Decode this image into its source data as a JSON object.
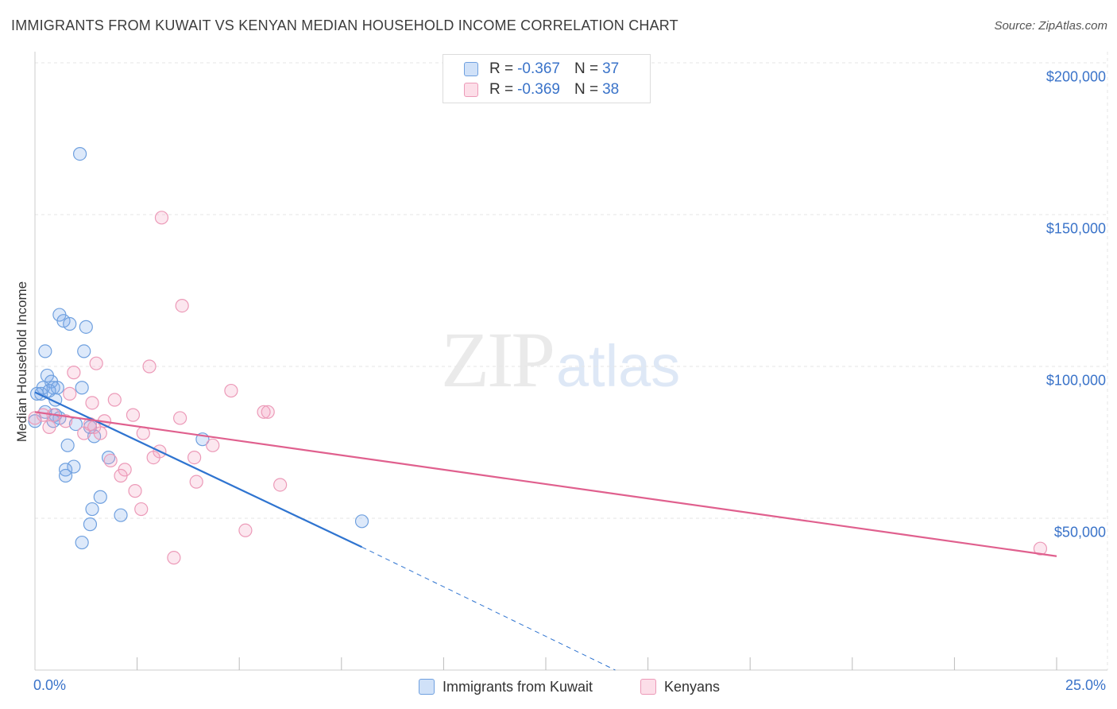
{
  "header": {
    "title": "IMMIGRANTS FROM KUWAIT VS KENYAN MEDIAN HOUSEHOLD INCOME CORRELATION CHART",
    "source": "Source: ZipAtlas.com"
  },
  "watermark": {
    "zip": "ZIP",
    "atlas": "atlas"
  },
  "colors": {
    "blue_fill": "rgba(120,168,235,0.25)",
    "blue_stroke": "#6fa0df",
    "blue_line": "#2f74d0",
    "pink_fill": "rgba(245,160,190,0.25)",
    "pink_stroke": "#ec9ab8",
    "pink_line": "#e0608e",
    "grid": "#e6e6e6",
    "tick_text": "#3a73c9"
  },
  "legend": {
    "rows": [
      {
        "r_label": "R =",
        "r_value": "-0.367",
        "n_label": "N =",
        "n_value": "37",
        "series": "blue"
      },
      {
        "r_label": "R =",
        "r_value": "-0.369",
        "n_label": "N =",
        "n_value": "38",
        "series": "pink"
      }
    ]
  },
  "chart_data": {
    "type": "scatter",
    "title": "IMMIGRANTS FROM KUWAIT VS KENYAN MEDIAN HOUSEHOLD INCOME CORRELATION CHART",
    "xlabel": "",
    "ylabel": "Median Household Income",
    "xlim": [
      0,
      25
    ],
    "ylim": [
      0,
      205000
    ],
    "x_tick_labels": [
      {
        "value": 0,
        "label": "0.0%"
      },
      {
        "value": 25,
        "label": "25.0%"
      }
    ],
    "x_minor_ticks": [
      2.5,
      5,
      7.5,
      10,
      12.5,
      15,
      17.5,
      20,
      22.5,
      25
    ],
    "y_ticks": [
      {
        "value": 50000,
        "label": "$50,000"
      },
      {
        "value": 100000,
        "label": "$100,000"
      },
      {
        "value": 150000,
        "label": "$150,000"
      },
      {
        "value": 200000,
        "label": "$200,000"
      }
    ],
    "grid": true,
    "legend_position": "top-center",
    "series": [
      {
        "name": "Immigrants from Kuwait",
        "color": "blue",
        "points": [
          [
            1.1,
            170000
          ],
          [
            0.6,
            117000
          ],
          [
            0.7,
            115000
          ],
          [
            1.25,
            113000
          ],
          [
            0.85,
            114000
          ],
          [
            0.25,
            105000
          ],
          [
            1.2,
            105000
          ],
          [
            0.3,
            97000
          ],
          [
            0.4,
            95000
          ],
          [
            0.5,
            89000
          ],
          [
            0.2,
            93000
          ],
          [
            0.45,
            93000
          ],
          [
            0.55,
            93000
          ],
          [
            1.15,
            93000
          ],
          [
            0.15,
            91000
          ],
          [
            0.35,
            92000
          ],
          [
            0.05,
            91000
          ],
          [
            0.5,
            84000
          ],
          [
            0.6,
            83000
          ],
          [
            1.0,
            81000
          ],
          [
            1.35,
            80000
          ],
          [
            1.45,
            77000
          ],
          [
            4.1,
            76000
          ],
          [
            0.8,
            74000
          ],
          [
            1.8,
            70000
          ],
          [
            0.95,
            67000
          ],
          [
            0.75,
            66000
          ],
          [
            0.75,
            64000
          ],
          [
            1.6,
            57000
          ],
          [
            1.4,
            53000
          ],
          [
            2.1,
            51000
          ],
          [
            1.35,
            48000
          ],
          [
            8.0,
            49000
          ],
          [
            1.15,
            42000
          ],
          [
            0.45,
            82000
          ],
          [
            0.25,
            85000
          ],
          [
            0.0,
            82000
          ]
        ]
      },
      {
        "name": "Kenyans",
        "color": "pink",
        "points": [
          [
            3.1,
            149000
          ],
          [
            3.6,
            120000
          ],
          [
            1.5,
            101000
          ],
          [
            2.8,
            100000
          ],
          [
            0.95,
            98000
          ],
          [
            4.8,
            92000
          ],
          [
            0.85,
            91000
          ],
          [
            1.95,
            89000
          ],
          [
            1.4,
            88000
          ],
          [
            5.6,
            85000
          ],
          [
            5.7,
            85000
          ],
          [
            2.4,
            84000
          ],
          [
            0.45,
            84000
          ],
          [
            0.2,
            84000
          ],
          [
            0.0,
            83000
          ],
          [
            3.55,
            83000
          ],
          [
            1.7,
            82000
          ],
          [
            0.75,
            82000
          ],
          [
            1.45,
            80000
          ],
          [
            1.6,
            78000
          ],
          [
            1.2,
            78000
          ],
          [
            2.65,
            78000
          ],
          [
            4.35,
            74000
          ],
          [
            3.05,
            72000
          ],
          [
            3.9,
            70000
          ],
          [
            2.9,
            70000
          ],
          [
            1.85,
            69000
          ],
          [
            2.2,
            66000
          ],
          [
            2.1,
            64000
          ],
          [
            3.95,
            62000
          ],
          [
            6.0,
            61000
          ],
          [
            2.45,
            59000
          ],
          [
            2.6,
            53000
          ],
          [
            5.15,
            46000
          ],
          [
            3.4,
            37000
          ],
          [
            24.6,
            40000
          ],
          [
            0.35,
            80000
          ],
          [
            1.35,
            81000
          ]
        ]
      }
    ],
    "trend_lines": [
      {
        "series": "Immigrants from Kuwait",
        "x0": 0,
        "y0": 91500,
        "x1": 8.0,
        "y1": 40500,
        "style": "solid"
      },
      {
        "series": "Immigrants from Kuwait",
        "x0": 8.0,
        "y0": 40500,
        "x1": 14.2,
        "y1": 0,
        "style": "dashed"
      },
      {
        "series": "Kenyans",
        "x0": 0,
        "y0": 85000,
        "x1": 25,
        "y1": 37500,
        "style": "solid"
      }
    ]
  },
  "bottom_legend": [
    {
      "label": "Immigrants from Kuwait",
      "series": "blue"
    },
    {
      "label": "Kenyans",
      "series": "pink"
    }
  ]
}
